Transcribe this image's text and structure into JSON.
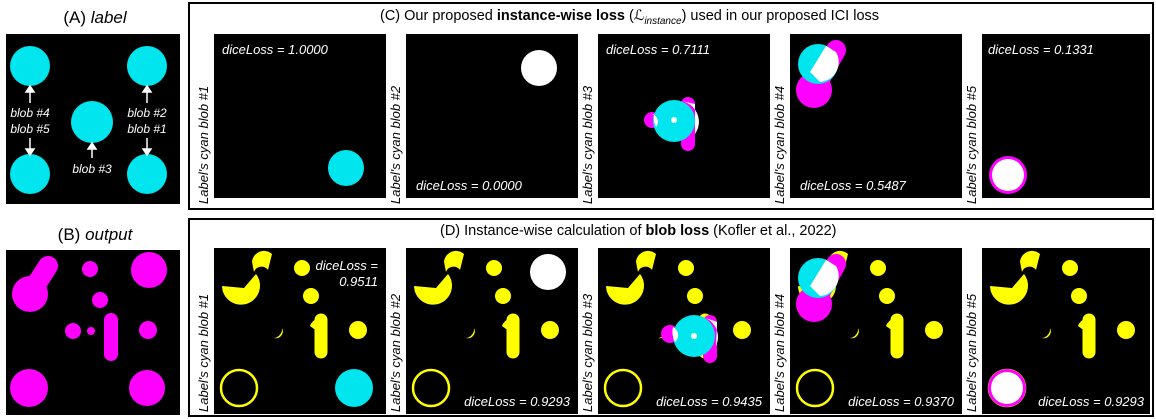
{
  "panel_a": {
    "title_prefix": "(A)",
    "title_italic": "label",
    "blob_labels": [
      "blob #4",
      "blob #5",
      "blob #2",
      "blob #1",
      "blob #3"
    ]
  },
  "panel_b": {
    "title_prefix": "(B)",
    "title_italic": "output"
  },
  "panel_c": {
    "title_before": "(C) Our proposed ",
    "title_bold": "instance-wise loss",
    "title_math": "(ℒ",
    "title_math_sub": "instance",
    "title_after": ") used in our proposed ICI loss",
    "tiles": [
      {
        "label": "Label's cyan blob #1",
        "dice": "diceLoss = 1.0000"
      },
      {
        "label": "Label's cyan blob #2",
        "dice": "diceLoss = 0.0000"
      },
      {
        "label": "Label's cyan blob #3",
        "dice": "diceLoss = 0.7111"
      },
      {
        "label": "Label's cyan blob #4",
        "dice": "diceLoss = 0.5487"
      },
      {
        "label": "Label's cyan blob #5",
        "dice": "diceLoss = 0.1331"
      }
    ]
  },
  "panel_d": {
    "title_before": "(D) Instance-wise calculation of ",
    "title_bold": "blob loss",
    "title_after": " (Kofler et al., 2022)",
    "tiles": [
      {
        "label": "Label's cyan blob #1",
        "dice_line1": "diceLoss =",
        "dice_line2": "0.9511"
      },
      {
        "label": "Label's cyan blob #2",
        "dice": "diceLoss = 0.9293"
      },
      {
        "label": "Label's cyan blob #3",
        "dice": "diceLoss = 0.9435"
      },
      {
        "label": "Label's cyan blob #4",
        "dice": "diceLoss = 0.9370"
      },
      {
        "label": "Label's cyan blob #5",
        "dice": "diceLoss = 0.9293"
      }
    ]
  },
  "colors": {
    "cyan": "#00e5ee",
    "magenta": "#ff00ff",
    "yellow": "#ffff00",
    "white": "#ffffff",
    "background": "#000000"
  }
}
